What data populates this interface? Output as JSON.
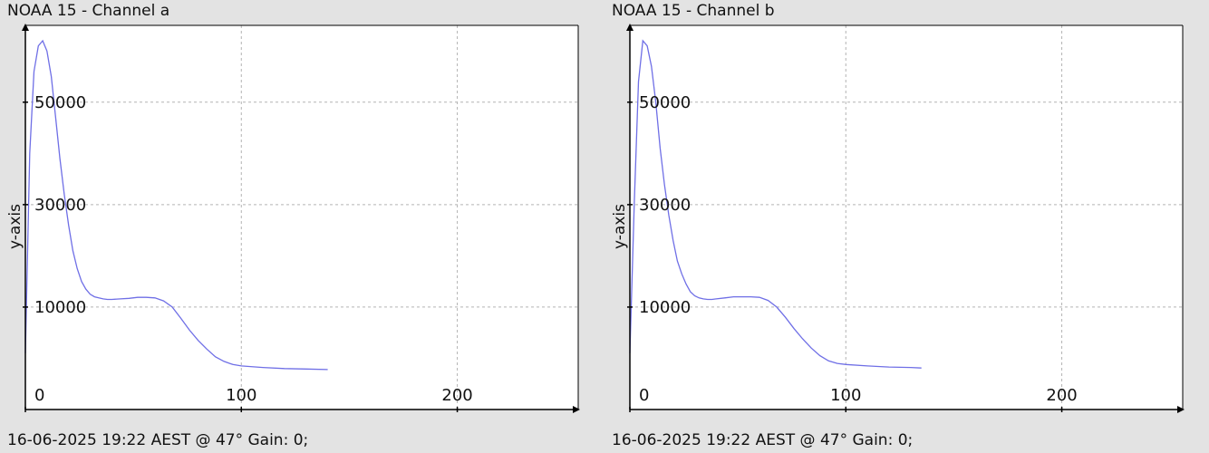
{
  "colors": {
    "background": "#e3e3e3",
    "plot_background": "#ffffff",
    "line": "#6f6fe6",
    "grid": "#b4b4b4",
    "axis": "#000000"
  },
  "chart_data": [
    {
      "type": "line",
      "title": "NOAA 15 - Channel a",
      "ylabel": "y-axis",
      "xlabel": "",
      "footer": "16-06-2025 19:22 AEST @ 47° Gain: 0;",
      "xlim": [
        0,
        256
      ],
      "ylim": [
        -10000,
        65000
      ],
      "xticks": [
        0,
        100,
        200
      ],
      "yticks": [
        10000,
        30000,
        50000
      ],
      "grid": true,
      "series": [
        {
          "x": [
            0,
            2,
            4,
            6,
            8,
            10,
            12,
            14,
            16,
            18,
            20,
            22,
            24,
            26,
            28,
            30,
            32,
            34,
            36,
            38,
            40,
            44,
            48,
            52,
            56,
            60,
            64,
            68,
            72,
            76,
            80,
            84,
            88,
            92,
            96,
            100,
            110,
            120,
            130,
            140
          ],
          "y": [
            1000,
            40000,
            56000,
            61000,
            62000,
            60000,
            55000,
            47000,
            39000,
            32000,
            26000,
            21000,
            17500,
            15000,
            13500,
            12500,
            12000,
            11800,
            11600,
            11500,
            11500,
            11600,
            11700,
            11900,
            11900,
            11800,
            11200,
            10000,
            7800,
            5500,
            3500,
            1800,
            300,
            -600,
            -1200,
            -1500,
            -1800,
            -2000,
            -2100,
            -2200
          ]
        }
      ]
    },
    {
      "type": "line",
      "title": "NOAA 15 - Channel b",
      "ylabel": "y-axis",
      "xlabel": "",
      "footer": "16-06-2025 19:22 AEST @ 47° Gain: 0;",
      "xlim": [
        0,
        256
      ],
      "ylim": [
        -10000,
        65000
      ],
      "xticks": [
        0,
        100,
        200
      ],
      "yticks": [
        10000,
        30000,
        50000
      ],
      "grid": true,
      "series": [
        {
          "x": [
            0,
            2,
            4,
            6,
            8,
            10,
            12,
            14,
            16,
            18,
            20,
            22,
            24,
            26,
            28,
            30,
            32,
            34,
            36,
            38,
            40,
            44,
            48,
            52,
            56,
            60,
            64,
            68,
            72,
            76,
            80,
            84,
            88,
            92,
            96,
            100,
            110,
            120,
            130,
            135
          ],
          "y": [
            1000,
            30000,
            54000,
            62000,
            61000,
            57000,
            50000,
            41000,
            34000,
            28000,
            23000,
            19000,
            16500,
            14500,
            13000,
            12200,
            11800,
            11600,
            11500,
            11500,
            11600,
            11800,
            12000,
            12000,
            12000,
            11900,
            11300,
            10000,
            8000,
            5800,
            3800,
            2000,
            500,
            -500,
            -1000,
            -1200,
            -1500,
            -1700,
            -1800,
            -1900
          ]
        }
      ]
    }
  ]
}
